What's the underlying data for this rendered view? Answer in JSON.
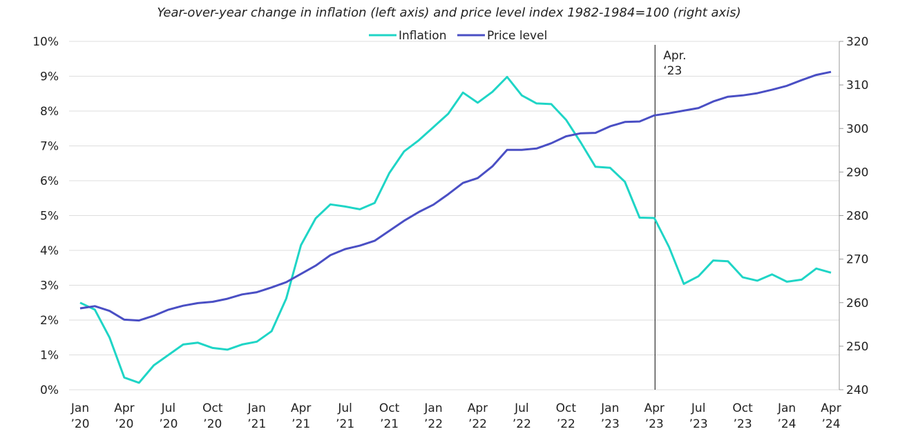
{
  "chart_data": {
    "type": "line",
    "title": "Year-over-year change in inflation (left axis) and price level index 1982-1984=100 (right axis)",
    "x": [
      "2020-01",
      "2020-02",
      "2020-03",
      "2020-04",
      "2020-05",
      "2020-06",
      "2020-07",
      "2020-08",
      "2020-09",
      "2020-10",
      "2020-11",
      "2020-12",
      "2021-01",
      "2021-02",
      "2021-03",
      "2021-04",
      "2021-05",
      "2021-06",
      "2021-07",
      "2021-08",
      "2021-09",
      "2021-10",
      "2021-11",
      "2021-12",
      "2022-01",
      "2022-02",
      "2022-03",
      "2022-04",
      "2022-05",
      "2022-06",
      "2022-07",
      "2022-08",
      "2022-09",
      "2022-10",
      "2022-11",
      "2022-12",
      "2023-01",
      "2023-02",
      "2023-03",
      "2023-04",
      "2023-05",
      "2023-06",
      "2023-07",
      "2023-08",
      "2023-09",
      "2023-10",
      "2023-11",
      "2023-12",
      "2024-01",
      "2024-02",
      "2024-03",
      "2024-04"
    ],
    "x_ticks": [
      {
        "line1": "Jan",
        "line2": "’20"
      },
      {
        "line1": "Apr",
        "line2": "’20"
      },
      {
        "line1": "Jul",
        "line2": "’20"
      },
      {
        "line1": "Oct",
        "line2": "’20"
      },
      {
        "line1": "Jan",
        "line2": "’21"
      },
      {
        "line1": "Apr",
        "line2": "’21"
      },
      {
        "line1": "Jul",
        "line2": "’21"
      },
      {
        "line1": "Oct",
        "line2": "’21"
      },
      {
        "line1": "Jan",
        "line2": "’22"
      },
      {
        "line1": "Apr",
        "line2": "’22"
      },
      {
        "line1": "Jul",
        "line2": "’22"
      },
      {
        "line1": "Oct",
        "line2": "’22"
      },
      {
        "line1": "Jan",
        "line2": "’23"
      },
      {
        "line1": "Apr",
        "line2": "’23"
      },
      {
        "line1": "Jul",
        "line2": "’23"
      },
      {
        "line1": "Oct",
        "line2": "’23"
      },
      {
        "line1": "Jan",
        "line2": "’24"
      },
      {
        "line1": "Apr",
        "line2": "’24"
      }
    ],
    "y_left": {
      "ylim": [
        0,
        10
      ],
      "ticks": [
        0,
        1,
        2,
        3,
        4,
        5,
        6,
        7,
        8,
        9,
        10
      ],
      "tick_labels": [
        "0%",
        "1%",
        "2%",
        "3%",
        "4%",
        "5%",
        "6%",
        "7%",
        "8%",
        "9%",
        "10%"
      ]
    },
    "y_right": {
      "ylim": [
        240,
        320
      ],
      "ticks": [
        240,
        250,
        260,
        270,
        280,
        290,
        300,
        310,
        320
      ],
      "tick_labels": [
        "240",
        "250",
        "260",
        "270",
        "280",
        "290",
        "300",
        "310",
        "320"
      ]
    },
    "grid": true,
    "legend": {
      "placement": "top-center",
      "entries": [
        "Inflation",
        "Price level"
      ]
    },
    "series": [
      {
        "name": "Inflation",
        "axis": "left",
        "color": "#1fd5c6",
        "values": [
          2.5,
          2.3,
          1.5,
          0.35,
          0.2,
          0.7,
          1.0,
          1.3,
          1.35,
          1.2,
          1.15,
          1.3,
          1.38,
          1.68,
          2.62,
          4.15,
          4.92,
          5.32,
          5.26,
          5.18,
          5.36,
          6.22,
          6.84,
          7.16,
          7.54,
          7.92,
          8.53,
          8.24,
          8.55,
          8.98,
          8.45,
          8.22,
          8.2,
          7.75,
          7.1,
          6.4,
          6.37,
          5.97,
          4.94,
          4.93,
          4.1,
          3.04,
          3.26,
          3.71,
          3.69,
          3.23,
          3.13,
          3.31,
          3.1,
          3.16,
          3.48,
          3.36
        ]
      },
      {
        "name": "Price level",
        "axis": "right",
        "color": "#4a4fc4",
        "values": [
          258.7,
          259.2,
          258.1,
          256.1,
          255.9,
          257.0,
          258.4,
          259.3,
          259.9,
          260.2,
          260.9,
          261.9,
          262.4,
          263.5,
          264.7,
          266.6,
          268.5,
          270.9,
          272.3,
          273.1,
          274.2,
          276.5,
          278.8,
          280.8,
          282.5,
          284.9,
          287.5,
          288.6,
          291.3,
          295.1,
          295.1,
          295.4,
          296.6,
          298.2,
          298.9,
          299.0,
          300.5,
          301.5,
          301.6,
          303.0,
          303.5,
          304.1,
          304.7,
          306.2,
          307.3,
          307.6,
          308.1,
          308.9,
          309.8,
          311.1,
          312.3,
          313.0
        ]
      }
    ],
    "annotations": [
      {
        "type": "vline",
        "at": "2023-04",
        "color": "#000000",
        "label_line1": "Apr.",
        "label_line2": "‘23"
      }
    ]
  }
}
